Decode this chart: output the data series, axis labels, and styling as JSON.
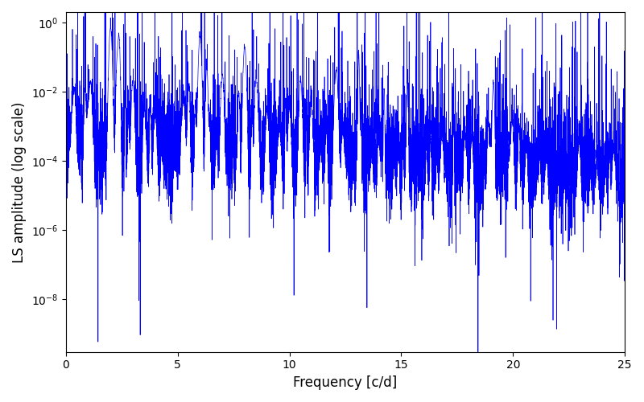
{
  "xlabel": "Frequency [c/d]",
  "ylabel": "LS amplitude (log scale)",
  "xmin": 0,
  "xmax": 25,
  "ymin": 3e-10,
  "ymax": 2.0,
  "line_color": "#0000ff",
  "line_width": 0.5,
  "background_color": "#ffffff",
  "figsize": [
    8.0,
    5.0
  ],
  "dpi": 100,
  "seed": 12345,
  "n_points": 8000,
  "yticks": [
    1e-08,
    1e-06,
    0.0001,
    0.01,
    1.0
  ]
}
